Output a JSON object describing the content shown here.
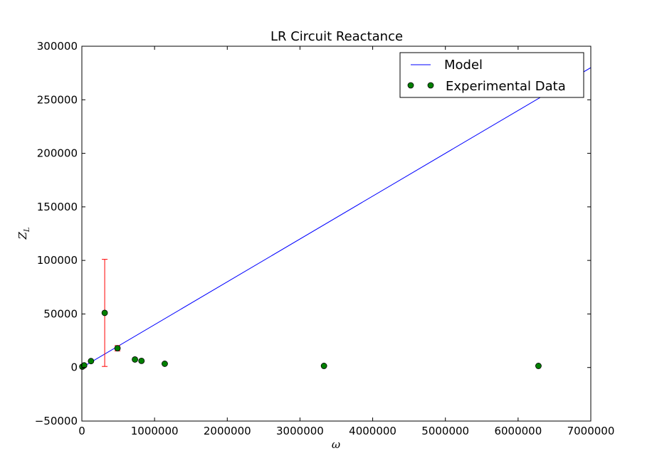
{
  "chart_data": {
    "type": "scatter",
    "title": "LR Circuit Reactance",
    "xlabel": "ω",
    "ylabel": "Z",
    "ylabel_sub": "L",
    "xlim": [
      0,
      7000000
    ],
    "ylim": [
      -50000,
      300000
    ],
    "xticks": [
      0,
      1000000,
      2000000,
      3000000,
      4000000,
      5000000,
      6000000,
      7000000
    ],
    "yticks": [
      -50000,
      0,
      50000,
      100000,
      150000,
      200000,
      250000,
      300000
    ],
    "grid": false,
    "legend_position": "top-right",
    "series": [
      {
        "name": "Model",
        "kind": "line",
        "color": "#0000ff",
        "x": [
          0,
          6300000,
          7000000
        ],
        "y": [
          0,
          252000,
          280000
        ]
      },
      {
        "name": "Experimental Data",
        "kind": "points",
        "color": "#008000",
        "x": [
          6283,
          31416,
          125664,
          314159,
          490000,
          730000,
          820000,
          1140000,
          3330000,
          6280000
        ],
        "y": [
          800,
          2000,
          6000,
          51000,
          18000,
          7500,
          6200,
          3500,
          1500,
          1500
        ],
        "error": [
          0,
          0,
          0,
          50000,
          2500,
          0,
          0,
          0,
          0,
          0
        ],
        "error_color": "#ff0000"
      }
    ]
  }
}
